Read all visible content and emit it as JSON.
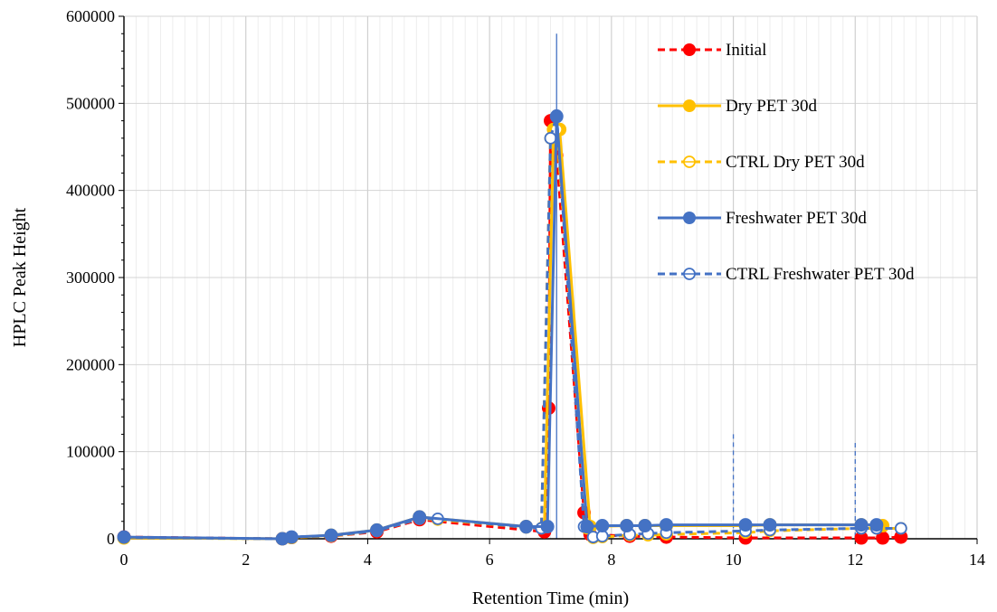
{
  "chart_data": {
    "type": "line",
    "title": "",
    "xlabel": "Retention Time (min)",
    "ylabel": "HPLC Peak Height",
    "xlim": [
      0,
      14
    ],
    "ylim": [
      0,
      600000
    ],
    "x_ticks": [
      0,
      2,
      4,
      6,
      8,
      10,
      12,
      14
    ],
    "y_ticks": [
      0,
      100000,
      200000,
      300000,
      400000,
      500000,
      600000
    ],
    "x_tick_labels": [
      "0",
      "2",
      "4",
      "6",
      "8",
      "10",
      "12",
      "14"
    ],
    "y_tick_labels": [
      "0",
      "100000",
      "200000",
      "300000",
      "400000",
      "500000",
      "600000"
    ],
    "grid": {
      "x": true,
      "y": true,
      "minor_x": true
    },
    "legend_position": "top-right",
    "series": [
      {
        "name": "Initial",
        "color": "#ff0000",
        "line_style": "dashed",
        "marker": "filled-circle",
        "points": [
          [
            0,
            2000
          ],
          [
            2.6,
            0
          ],
          [
            2.75,
            1500
          ],
          [
            3.4,
            3000
          ],
          [
            4.15,
            8000
          ],
          [
            4.85,
            22000
          ],
          [
            6.9,
            8000
          ],
          [
            6.97,
            150000
          ],
          [
            7.0,
            480000
          ],
          [
            7.1,
            440000
          ],
          [
            7.55,
            30000
          ],
          [
            7.65,
            5000
          ],
          [
            8.3,
            3000
          ],
          [
            8.9,
            2000
          ],
          [
            10.2,
            1000
          ],
          [
            12.1,
            1000
          ],
          [
            12.45,
            1000
          ],
          [
            12.75,
            2000
          ]
        ]
      },
      {
        "name": "Dry PET 30d",
        "color": "#ffc000",
        "line_style": "solid",
        "marker": "filled-circle",
        "points": [
          [
            0,
            1000
          ],
          [
            2.6,
            0
          ],
          [
            2.75,
            1500
          ],
          [
            3.4,
            4000
          ],
          [
            4.15,
            10000
          ],
          [
            4.85,
            25000
          ],
          [
            6.6,
            14000
          ],
          [
            6.9,
            14000
          ],
          [
            7.05,
            470000
          ],
          [
            7.15,
            470000
          ],
          [
            7.65,
            14000
          ],
          [
            8.25,
            15000
          ],
          [
            8.55,
            15000
          ],
          [
            8.9,
            15000
          ],
          [
            10.2,
            15000
          ],
          [
            10.6,
            16000
          ],
          [
            12.1,
            16000
          ],
          [
            12.45,
            15000
          ]
        ]
      },
      {
        "name": "CTRL Dry PET 30d",
        "color": "#ffc000",
        "line_style": "dashed",
        "marker": "open-circle",
        "points": [
          [
            0,
            1000
          ],
          [
            2.6,
            0
          ],
          [
            2.75,
            1500
          ],
          [
            3.4,
            3000
          ],
          [
            4.15,
            9000
          ],
          [
            4.85,
            23000
          ],
          [
            5.15,
            22000
          ],
          [
            6.6,
            13000
          ],
          [
            6.85,
            12000
          ],
          [
            7.0,
            460000
          ],
          [
            7.1,
            470000
          ],
          [
            7.6,
            12000
          ],
          [
            7.7,
            1000
          ],
          [
            7.85,
            2000
          ],
          [
            8.3,
            4000
          ],
          [
            8.6,
            4000
          ],
          [
            8.9,
            5000
          ],
          [
            10.2,
            7000
          ],
          [
            10.6,
            9000
          ],
          [
            12.1,
            12000
          ],
          [
            12.35,
            12000
          ],
          [
            12.75,
            12000
          ]
        ]
      },
      {
        "name": "Freshwater PET 30d",
        "color": "#4472c4",
        "line_style": "solid",
        "marker": "filled-circle",
        "points": [
          [
            0,
            2000
          ],
          [
            2.6,
            0
          ],
          [
            2.75,
            2000
          ],
          [
            3.4,
            4000
          ],
          [
            4.15,
            10000
          ],
          [
            4.85,
            25000
          ],
          [
            6.6,
            14000
          ],
          [
            6.95,
            14000
          ],
          [
            7.1,
            485000
          ],
          [
            7.6,
            14000
          ],
          [
            7.85,
            15000
          ],
          [
            8.25,
            15000
          ],
          [
            8.55,
            15000
          ],
          [
            8.9,
            16000
          ],
          [
            10.2,
            16000
          ],
          [
            10.6,
            16000
          ],
          [
            12.1,
            16000
          ],
          [
            12.35,
            16000
          ]
        ]
      },
      {
        "name": "CTRL Freshwater PET 30d",
        "color": "#4472c4",
        "line_style": "dashed",
        "marker": "open-circle",
        "points": [
          [
            0,
            1500
          ],
          [
            2.6,
            0
          ],
          [
            2.75,
            2000
          ],
          [
            3.4,
            3500
          ],
          [
            4.15,
            9000
          ],
          [
            4.85,
            23000
          ],
          [
            5.15,
            23000
          ],
          [
            6.6,
            13000
          ],
          [
            6.85,
            12000
          ],
          [
            7.0,
            460000
          ],
          [
            7.1,
            486000
          ],
          [
            7.55,
            14000
          ],
          [
            7.7,
            2000
          ],
          [
            7.85,
            3000
          ],
          [
            8.3,
            5000
          ],
          [
            8.6,
            6000
          ],
          [
            8.9,
            7000
          ],
          [
            10.2,
            9000
          ],
          [
            10.6,
            10000
          ],
          [
            12.1,
            12000
          ],
          [
            12.35,
            12000
          ],
          [
            12.75,
            12000
          ]
        ]
      }
    ],
    "reference_lines": [
      {
        "x": 7.1,
        "y_top": 580000,
        "color": "#4472c4",
        "style": "solid"
      },
      {
        "x": 10.0,
        "y_top": 120000,
        "color": "#4472c4",
        "style": "dashed"
      },
      {
        "x": 12.0,
        "y_top": 110000,
        "color": "#4472c4",
        "style": "dashed"
      }
    ]
  }
}
